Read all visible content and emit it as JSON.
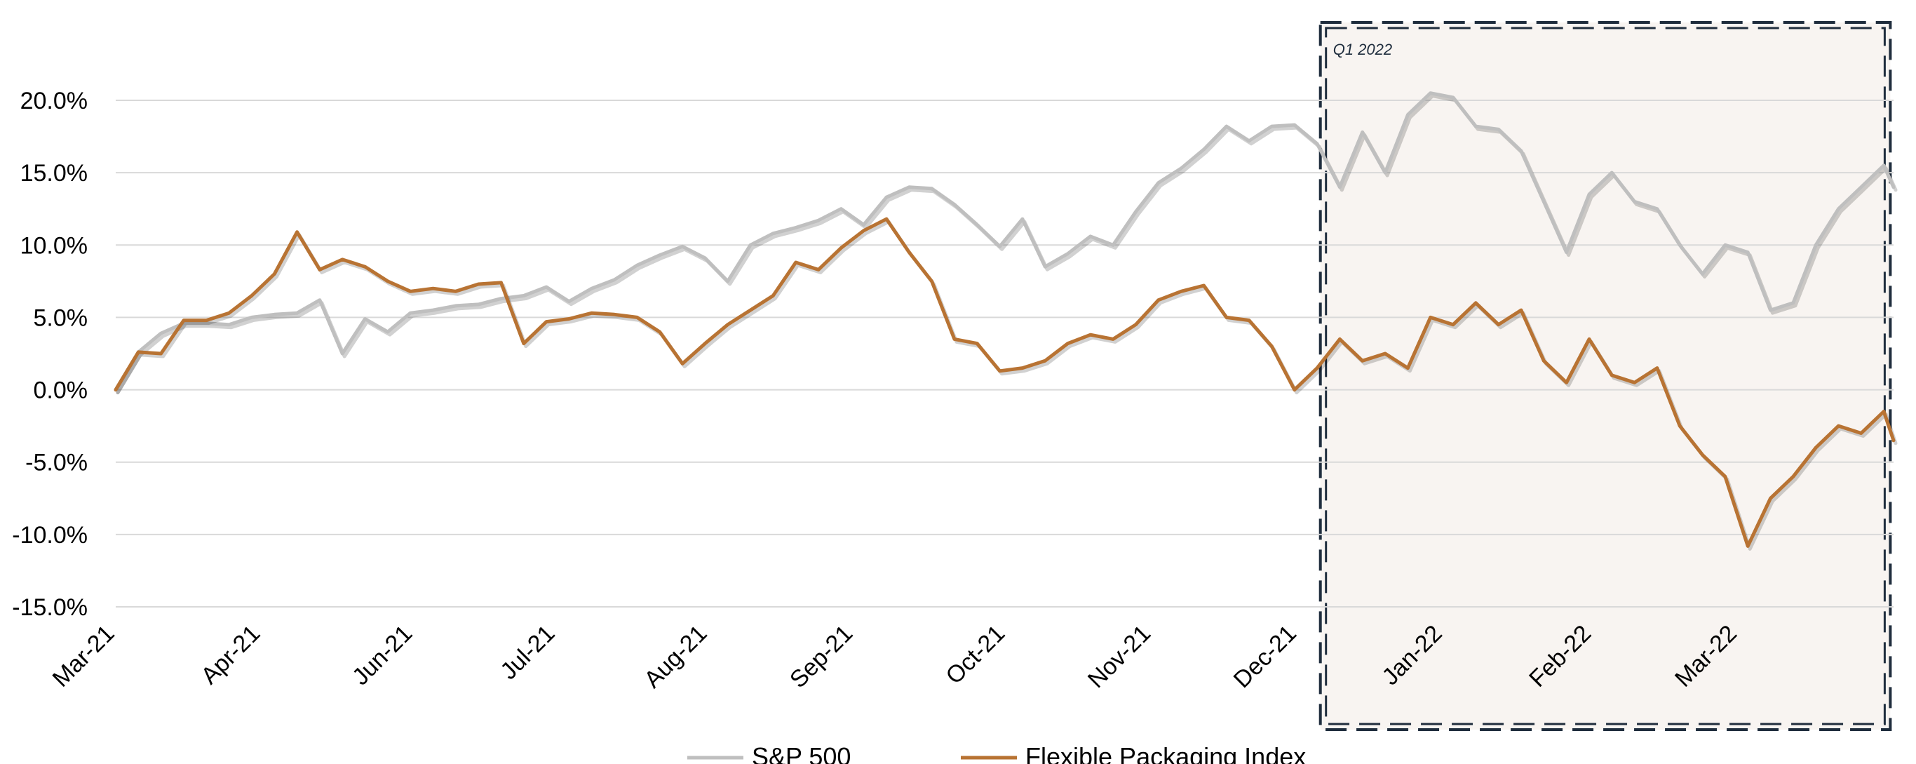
{
  "chart_data": {
    "type": "line",
    "title": "",
    "xlabel": "",
    "ylabel": "",
    "ylim": [
      -15,
      20
    ],
    "yticks": [
      -15,
      -10,
      -5,
      0,
      5,
      10,
      15,
      20
    ],
    "ytick_labels": [
      "-15.0%",
      "-10.0%",
      "-5.0%",
      "0.0%",
      "5.0%",
      "10.0%",
      "15.0%",
      "20.0%"
    ],
    "x_tick_labels": [
      "Mar-21",
      "Apr-21",
      "Jun-21",
      "Jul-21",
      "Aug-21",
      "Sep-21",
      "Oct-21",
      "Nov-21",
      "Dec-21",
      "Jan-22",
      "Feb-22",
      "Mar-22"
    ],
    "x_tick_dates": [
      "2021-03-01",
      "2021-04-15",
      "2021-06-01",
      "2021-07-15",
      "2021-08-31",
      "2021-10-15",
      "2021-12-01",
      "2022-01-15",
      "2022-03-01",
      "2022-04-15",
      "2022-05-31",
      "2022-07-15"
    ],
    "grid": true,
    "legend_position": "bottom",
    "annotation": {
      "label": "Q1 2022",
      "x_start": "2022-03-08",
      "x_end": "2022-08-31"
    },
    "colors": {
      "sp500": "#bfbfbf",
      "flexible_packaging": "#b87333",
      "annotation_fill": "#f8f4f1",
      "annotation_border": "#1f2d3d",
      "grid": "#d9d9d9"
    },
    "series": [
      {
        "name": "S&P 500",
        "points": [
          [
            "2021-03-01",
            0.0
          ],
          [
            "2021-03-08",
            2.6
          ],
          [
            "2021-03-15",
            3.9
          ],
          [
            "2021-03-22",
            4.6
          ],
          [
            "2021-03-29",
            4.6
          ],
          [
            "2021-04-05",
            4.5
          ],
          [
            "2021-04-12",
            5.0
          ],
          [
            "2021-04-19",
            5.2
          ],
          [
            "2021-04-26",
            5.3
          ],
          [
            "2021-05-03",
            6.2
          ],
          [
            "2021-05-10",
            2.5
          ],
          [
            "2021-05-17",
            4.9
          ],
          [
            "2021-05-24",
            4.0
          ],
          [
            "2021-05-31",
            5.3
          ],
          [
            "2021-06-07",
            5.5
          ],
          [
            "2021-06-14",
            5.8
          ],
          [
            "2021-06-21",
            5.9
          ],
          [
            "2021-06-28",
            6.3
          ],
          [
            "2021-07-05",
            6.5
          ],
          [
            "2021-07-12",
            7.1
          ],
          [
            "2021-07-19",
            6.1
          ],
          [
            "2021-07-26",
            7.0
          ],
          [
            "2021-08-02",
            7.6
          ],
          [
            "2021-08-09",
            8.6
          ],
          [
            "2021-08-16",
            9.3
          ],
          [
            "2021-08-23",
            9.9
          ],
          [
            "2021-08-30",
            9.1
          ],
          [
            "2021-09-06",
            7.5
          ],
          [
            "2021-09-13",
            10.0
          ],
          [
            "2021-09-20",
            10.8
          ],
          [
            "2021-09-27",
            11.2
          ],
          [
            "2021-10-04",
            11.7
          ],
          [
            "2021-10-11",
            12.5
          ],
          [
            "2021-10-18",
            11.4
          ],
          [
            "2021-10-25",
            13.3
          ],
          [
            "2021-11-01",
            14.0
          ],
          [
            "2021-11-08",
            13.9
          ],
          [
            "2021-11-15",
            12.8
          ],
          [
            "2021-11-22",
            11.4
          ],
          [
            "2021-11-29",
            9.9
          ],
          [
            "2021-12-06",
            11.8
          ],
          [
            "2021-12-13",
            8.5
          ],
          [
            "2021-12-20",
            9.4
          ],
          [
            "2021-12-27",
            10.6
          ],
          [
            "2022-01-03",
            10.0
          ],
          [
            "2022-01-10",
            12.3
          ],
          [
            "2022-01-17",
            14.3
          ],
          [
            "2022-01-24",
            15.3
          ],
          [
            "2022-01-31",
            16.6
          ],
          [
            "2022-02-07",
            18.2
          ],
          [
            "2022-02-14",
            17.2
          ],
          [
            "2022-02-21",
            18.2
          ],
          [
            "2022-02-28",
            18.3
          ],
          [
            "2022-03-07",
            17.0
          ],
          [
            "2022-03-14",
            14.0
          ],
          [
            "2022-03-21",
            17.8
          ],
          [
            "2022-03-28",
            15.0
          ],
          [
            "2022-04-04",
            19.0
          ],
          [
            "2022-04-11",
            20.5
          ],
          [
            "2022-04-18",
            20.2
          ],
          [
            "2022-04-25",
            18.2
          ],
          [
            "2022-05-02",
            18.0
          ],
          [
            "2022-05-09",
            16.5
          ],
          [
            "2022-05-16",
            13.0
          ],
          [
            "2022-05-23",
            9.5
          ],
          [
            "2022-05-30",
            13.5
          ],
          [
            "2022-06-06",
            15.0
          ],
          [
            "2022-06-13",
            13.0
          ],
          [
            "2022-06-20",
            12.5
          ],
          [
            "2022-06-27",
            10.0
          ],
          [
            "2022-07-04",
            8.0
          ],
          [
            "2022-07-11",
            10.0
          ],
          [
            "2022-07-18",
            9.5
          ],
          [
            "2022-07-25",
            5.5
          ],
          [
            "2022-08-01",
            6.0
          ],
          [
            "2022-08-08",
            10.0
          ],
          [
            "2022-08-15",
            12.5
          ],
          [
            "2022-08-22",
            14.0
          ],
          [
            "2022-08-29",
            15.5
          ],
          [
            "2022-09-01",
            14.0
          ]
        ]
      },
      {
        "name": "Flexible Packaging Index",
        "points": [
          [
            "2021-03-01",
            0.0
          ],
          [
            "2021-03-08",
            2.6
          ],
          [
            "2021-03-15",
            2.5
          ],
          [
            "2021-03-22",
            4.8
          ],
          [
            "2021-03-29",
            4.8
          ],
          [
            "2021-04-05",
            5.3
          ],
          [
            "2021-04-12",
            6.5
          ],
          [
            "2021-04-19",
            8.0
          ],
          [
            "2021-04-26",
            10.9
          ],
          [
            "2021-05-03",
            8.3
          ],
          [
            "2021-05-10",
            9.0
          ],
          [
            "2021-05-17",
            8.5
          ],
          [
            "2021-05-24",
            7.5
          ],
          [
            "2021-05-31",
            6.8
          ],
          [
            "2021-06-07",
            7.0
          ],
          [
            "2021-06-14",
            6.8
          ],
          [
            "2021-06-21",
            7.3
          ],
          [
            "2021-06-28",
            7.4
          ],
          [
            "2021-07-05",
            3.2
          ],
          [
            "2021-07-12",
            4.7
          ],
          [
            "2021-07-19",
            4.9
          ],
          [
            "2021-07-26",
            5.3
          ],
          [
            "2021-08-02",
            5.2
          ],
          [
            "2021-08-09",
            5.0
          ],
          [
            "2021-08-16",
            4.0
          ],
          [
            "2021-08-23",
            1.8
          ],
          [
            "2021-08-30",
            3.2
          ],
          [
            "2021-09-06",
            4.5
          ],
          [
            "2021-09-13",
            5.5
          ],
          [
            "2021-09-20",
            6.5
          ],
          [
            "2021-09-27",
            8.8
          ],
          [
            "2021-10-04",
            8.3
          ],
          [
            "2021-10-11",
            9.8
          ],
          [
            "2021-10-18",
            11.0
          ],
          [
            "2021-10-25",
            11.8
          ],
          [
            "2021-11-01",
            9.5
          ],
          [
            "2021-11-08",
            7.5
          ],
          [
            "2021-11-15",
            3.5
          ],
          [
            "2021-11-22",
            3.2
          ],
          [
            "2021-11-29",
            1.3
          ],
          [
            "2021-12-06",
            1.5
          ],
          [
            "2021-12-13",
            2.0
          ],
          [
            "2021-12-20",
            3.2
          ],
          [
            "2021-12-27",
            3.8
          ],
          [
            "2022-01-03",
            3.5
          ],
          [
            "2022-01-10",
            4.5
          ],
          [
            "2022-01-17",
            6.2
          ],
          [
            "2022-01-24",
            6.8
          ],
          [
            "2022-01-31",
            7.2
          ],
          [
            "2022-02-07",
            5.0
          ],
          [
            "2022-02-14",
            4.8
          ],
          [
            "2022-02-21",
            3.0
          ],
          [
            "2022-02-28",
            0.0
          ],
          [
            "2022-03-07",
            1.5
          ],
          [
            "2022-03-14",
            3.5
          ],
          [
            "2022-03-21",
            2.0
          ],
          [
            "2022-03-28",
            2.5
          ],
          [
            "2022-04-04",
            1.5
          ],
          [
            "2022-04-11",
            5.0
          ],
          [
            "2022-04-18",
            4.5
          ],
          [
            "2022-04-25",
            6.0
          ],
          [
            "2022-05-02",
            4.5
          ],
          [
            "2022-05-09",
            5.5
          ],
          [
            "2022-05-16",
            2.0
          ],
          [
            "2022-05-23",
            0.5
          ],
          [
            "2022-05-30",
            3.5
          ],
          [
            "2022-06-06",
            1.0
          ],
          [
            "2022-06-13",
            0.5
          ],
          [
            "2022-06-20",
            1.5
          ],
          [
            "2022-06-27",
            -2.5
          ],
          [
            "2022-07-04",
            -4.5
          ],
          [
            "2022-07-11",
            -6.0
          ],
          [
            "2022-07-18",
            -10.8
          ],
          [
            "2022-07-25",
            -7.5
          ],
          [
            "2022-08-01",
            -6.0
          ],
          [
            "2022-08-08",
            -4.0
          ],
          [
            "2022-08-15",
            -2.5
          ],
          [
            "2022-08-22",
            -3.0
          ],
          [
            "2022-08-29",
            -1.5
          ],
          [
            "2022-09-01",
            -3.5
          ]
        ]
      }
    ]
  }
}
